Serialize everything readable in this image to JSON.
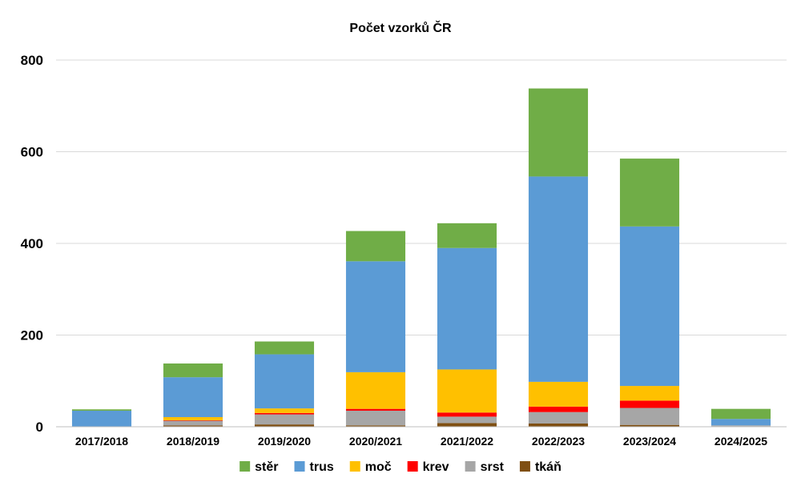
{
  "chart_data": {
    "type": "bar",
    "stacked": true,
    "title": "Počet vzorků ČR",
    "xlabel": "",
    "ylabel": "",
    "ylim": [
      0,
      800
    ],
    "yticks": [
      0,
      200,
      400,
      600,
      800
    ],
    "grid": true,
    "legend_position": "bottom",
    "categories": [
      "2017/2018",
      "2018/2019",
      "2019/2020",
      "2020/2021",
      "2021/2022",
      "2022/2023",
      "2023/2024",
      "2024/2025"
    ],
    "series": [
      {
        "name": "tkáň",
        "color": "#7f4f13",
        "values": [
          0,
          3,
          5,
          3,
          8,
          7,
          4,
          1
        ]
      },
      {
        "name": "srst",
        "color": "#a6a6a6",
        "values": [
          0,
          10,
          22,
          32,
          14,
          25,
          37,
          2
        ]
      },
      {
        "name": "krev",
        "color": "#ff0000",
        "values": [
          0,
          1,
          3,
          4,
          9,
          12,
          16,
          0
        ]
      },
      {
        "name": "moč",
        "color": "#ffc000",
        "values": [
          0,
          7,
          10,
          80,
          94,
          54,
          32,
          0
        ]
      },
      {
        "name": "trus",
        "color": "#5b9bd5",
        "values": [
          35,
          87,
          118,
          242,
          265,
          448,
          348,
          14
        ]
      },
      {
        "name": "stěr",
        "color": "#70ad47",
        "values": [
          3,
          30,
          28,
          66,
          54,
          192,
          148,
          22
        ]
      }
    ],
    "legend_order": [
      "stěr",
      "trus",
      "moč",
      "krev",
      "srst",
      "tkáň"
    ]
  }
}
